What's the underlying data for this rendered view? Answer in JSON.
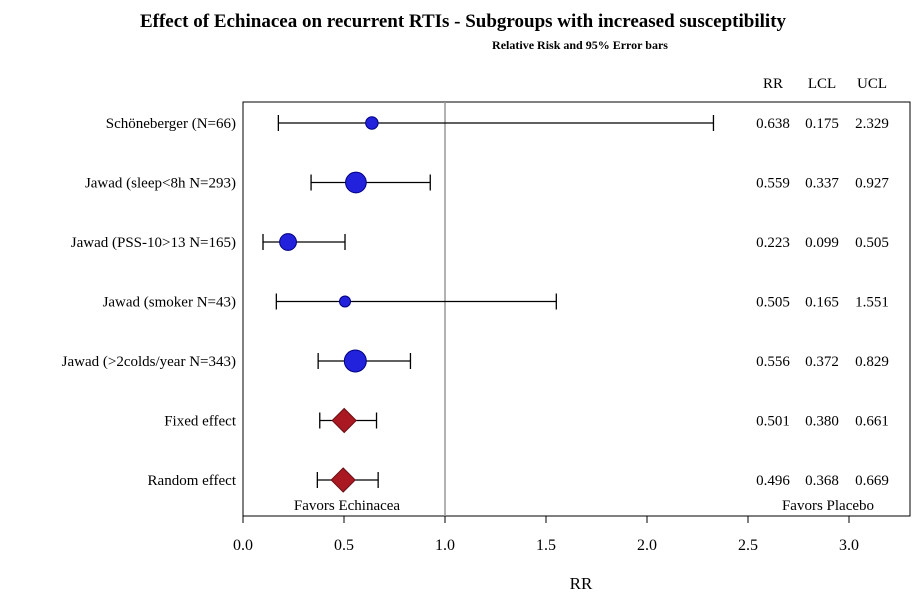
{
  "chart_data": {
    "type": "forest",
    "title": "Effect of Echinacea on recurrent RTIs - Subgroups with increased susceptibility",
    "subtitle": "Relative Risk and 95% Error bars",
    "xlabel": "RR",
    "xlim": [
      0,
      3.2
    ],
    "xticks": [
      0,
      0.5,
      1.0,
      1.5,
      2.0,
      2.5,
      3.0
    ],
    "xtick_labels": [
      "0.0",
      "0.5",
      "1.0",
      "1.5",
      "2.0",
      "2.5",
      "3.0"
    ],
    "reference_line": 1.0,
    "column_headers": [
      "RR",
      "LCL",
      "UCL"
    ],
    "favors_left": "Favors Echinacea",
    "favors_right": "Favors Placebo",
    "colors": {
      "study": "#2222dd",
      "study_edge": "#000080",
      "summary": "#aa1822",
      "refline": "#999999"
    },
    "rows": [
      {
        "label": "Schöneberger (N=66)",
        "kind": "study",
        "weight": 66,
        "rr": 0.638,
        "lcl": 0.175,
        "ucl": 2.329,
        "rr_text": "0.638",
        "lcl_text": "0.175",
        "ucl_text": "2.329"
      },
      {
        "label": "Jawad (sleep<8h N=293)",
        "kind": "study",
        "weight": 293,
        "rr": 0.559,
        "lcl": 0.337,
        "ucl": 0.927,
        "rr_text": "0.559",
        "lcl_text": "0.337",
        "ucl_text": "0.927"
      },
      {
        "label": "Jawad (PSS-10>13 N=165)",
        "kind": "study",
        "weight": 165,
        "rr": 0.223,
        "lcl": 0.099,
        "ucl": 0.505,
        "rr_text": "0.223",
        "lcl_text": "0.099",
        "ucl_text": "0.505"
      },
      {
        "label": "Jawad (smoker N=43)",
        "kind": "study",
        "weight": 43,
        "rr": 0.505,
        "lcl": 0.165,
        "ucl": 1.551,
        "rr_text": "0.505",
        "lcl_text": "0.165",
        "ucl_text": "1.551"
      },
      {
        "label": "Jawad (>2colds/year N=343)",
        "kind": "study",
        "weight": 343,
        "rr": 0.556,
        "lcl": 0.372,
        "ucl": 0.829,
        "rr_text": "0.556",
        "lcl_text": "0.372",
        "ucl_text": "0.829"
      },
      {
        "label": "Fixed effect",
        "kind": "summary",
        "rr": 0.501,
        "lcl": 0.38,
        "ucl": 0.661,
        "rr_text": "0.501",
        "lcl_text": "0.380",
        "ucl_text": "0.661"
      },
      {
        "label": "Random effect",
        "kind": "summary",
        "rr": 0.496,
        "lcl": 0.368,
        "ucl": 0.669,
        "rr_text": "0.496",
        "lcl_text": "0.368",
        "ucl_text": "0.669"
      }
    ]
  }
}
